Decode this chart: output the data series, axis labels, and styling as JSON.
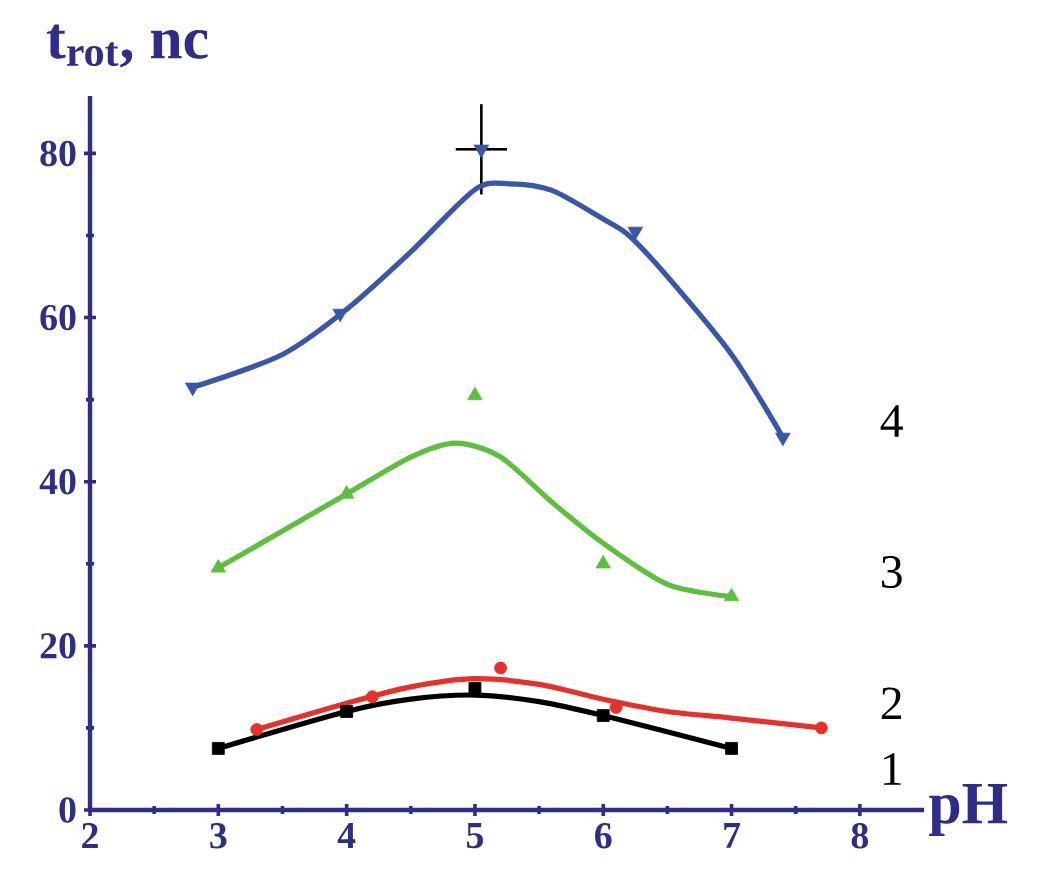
{
  "chart_data": {
    "type": "scatter",
    "xlabel": "pH",
    "ylabel": "t$_{rot}$, nc",
    "xlim": [
      2,
      8.5
    ],
    "ylim": [
      0,
      87
    ],
    "xticks": [
      2,
      3,
      4,
      5,
      6,
      7,
      8
    ],
    "yticks": [
      0,
      20,
      40,
      60,
      80
    ],
    "grid": false,
    "series": [
      {
        "name": "4",
        "marker": "triangle-down",
        "color": "#3a56a8",
        "x": [
          2.8,
          3.95,
          5.05,
          6.25,
          7.4
        ],
        "values": [
          51.5,
          60.5,
          80.5,
          70.5,
          45.4
        ],
        "errors": [
          null,
          null,
          5.5,
          null,
          null
        ],
        "xerrors": [
          null,
          null,
          0.2,
          null,
          null
        ]
      },
      {
        "type": "line",
        "marker": "none",
        "color": "#3a56a8",
        "x": [
          2.8,
          3.5,
          4,
          4.5,
          5,
          5.27,
          5.6,
          6,
          6.2,
          6.5,
          7,
          7.4
        ],
        "values": [
          51.5,
          55.5,
          61,
          68,
          75.6,
          76.3,
          75.5,
          72,
          70,
          65,
          55.5,
          45.4
        ]
      },
      {
        "name": "3",
        "marker": "triangle",
        "color": "#5cbf3e",
        "x": [
          3,
          4,
          5,
          6,
          7
        ],
        "values": [
          29.5,
          38.5,
          50.5,
          30,
          26
        ]
      },
      {
        "type": "line",
        "marker": "none",
        "color": "#5cbf3e",
        "x": [
          3,
          3.5,
          4,
          4.5,
          4.85,
          5.2,
          5.6,
          6,
          6.5,
          7
        ],
        "values": [
          29.5,
          34,
          38.5,
          43,
          44.7,
          43,
          37.5,
          32.5,
          27.5,
          26
        ]
      },
      {
        "name": "2",
        "marker": "circle",
        "color": "#e8302a",
        "x": [
          3.3,
          4.2,
          5.2,
          6.1,
          7.7
        ],
        "values": [
          9.8,
          13.8,
          17.3,
          12.5,
          10
        ]
      },
      {
        "type": "line",
        "marker": "none",
        "color": "#e8302a",
        "x": [
          3.3,
          4,
          4.5,
          5,
          5.5,
          6,
          6.5,
          7,
          7.7
        ],
        "values": [
          9.8,
          13,
          15,
          16,
          15.3,
          13.5,
          12,
          11.2,
          10
        ]
      },
      {
        "name": "1",
        "marker": "square",
        "color": "#000000",
        "x": [
          3,
          4,
          5,
          6,
          7
        ],
        "values": [
          7.5,
          12,
          14.8,
          11.5,
          7.5
        ]
      },
      {
        "type": "line",
        "marker": "none",
        "color": "#000000",
        "x": [
          3,
          4,
          4.5,
          5,
          5.5,
          6,
          7
        ],
        "values": [
          7.5,
          12,
          13.5,
          14,
          13.2,
          11.5,
          7.5
        ]
      }
    ]
  }
}
